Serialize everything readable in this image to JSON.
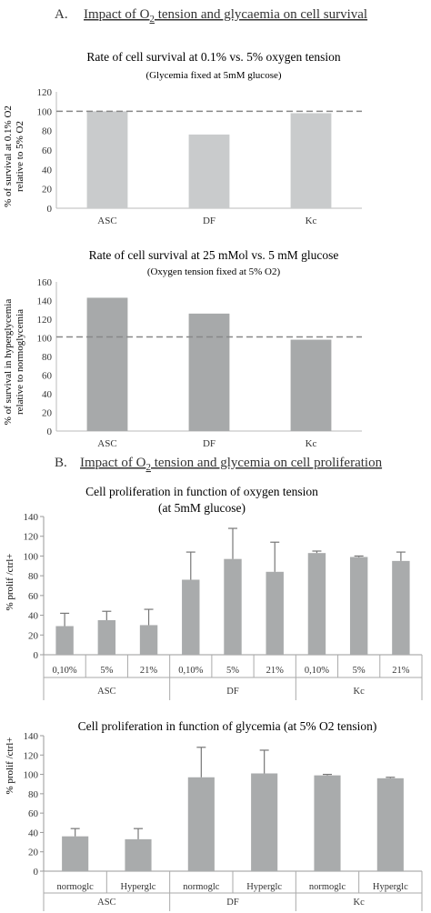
{
  "section_a": {
    "letter": "A.",
    "title_pre": "Impact of O",
    "title_sub": "2",
    "title_post": " tension and glycaemia on cell survival"
  },
  "section_b": {
    "letter": "B.",
    "title_pre": "Impact of O",
    "title_sub": "2",
    "title_post": " tension and glycemia on cell proliferation"
  },
  "chart_data": [
    {
      "type": "bar",
      "title": "Rate of cell survival at 0.1% vs. 5% oxygen tension",
      "subtitle": "(Glycemia fixed at 5mM glucose)",
      "ylabel_line1": "% of survival at 0.1% O2",
      "ylabel_line2": "relative to 5% O2",
      "categories": [
        "ASC",
        "DF",
        "Kc"
      ],
      "values": [
        100,
        76,
        98
      ],
      "yticks": [
        "0",
        "20",
        "40",
        "60",
        "80",
        "100",
        "120"
      ],
      "ylim": [
        0,
        120
      ],
      "reference_line": 100,
      "color": "#c9cbcc"
    },
    {
      "type": "bar",
      "title": "Rate of cell survival at 25 mMol vs. 5 mM glucose",
      "subtitle": "(Oxygen tension fixed at 5% O2)",
      "ylabel_line1": "% of survival in hyperglycemia",
      "ylabel_line2": "relative to normoglycemia",
      "categories": [
        "ASC",
        "DF",
        "Kc"
      ],
      "values": [
        143,
        126,
        98
      ],
      "yticks": [
        "0",
        "20",
        "40",
        "60",
        "80",
        "100",
        "120",
        "140",
        "160"
      ],
      "ylim": [
        0,
        160
      ],
      "reference_line": 101,
      "color": "#a7a9aa"
    },
    {
      "type": "bar",
      "title_line1": "Cell proliferation in function of oxygen tension",
      "title_line2": "(at 5mM glucose)",
      "ylabel": "% prolif /ctrl+",
      "categories": [
        "0,10%",
        "5%",
        "21%",
        "0,10%",
        "5%",
        "21%",
        "0,10%",
        "5%",
        "21%"
      ],
      "groups": [
        "ASC",
        "DF",
        "Kc"
      ],
      "values": [
        29,
        35,
        30,
        76,
        97,
        84,
        103,
        99,
        95
      ],
      "errors": [
        13,
        9,
        16,
        28,
        31,
        30,
        2,
        1,
        9
      ],
      "yticks": [
        "0",
        "20",
        "40",
        "60",
        "80",
        "100",
        "120",
        "140"
      ],
      "ylim": [
        0,
        140
      ],
      "color": "#a9abac"
    },
    {
      "type": "bar",
      "title": "Cell proliferation in function of glycemia (at 5% O2 tension)",
      "ylabel": "% prolif /ctrl+",
      "categories": [
        "normoglc",
        "Hyperglc",
        "normoglc",
        "Hyperglc",
        "normoglc",
        "Hyperglc"
      ],
      "groups": [
        "ASC",
        "DF",
        "Kc"
      ],
      "values": [
        36,
        33,
        97,
        101,
        99,
        96
      ],
      "errors": [
        8,
        11,
        31,
        24,
        1,
        1
      ],
      "yticks": [
        "0",
        "20",
        "40",
        "60",
        "80",
        "100",
        "120",
        "140"
      ],
      "ylim": [
        0,
        140
      ],
      "color": "#a9abac"
    }
  ]
}
